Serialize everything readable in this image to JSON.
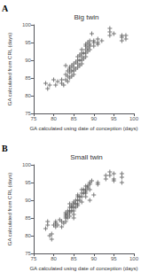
{
  "chart_data": [
    {
      "type": "scatter",
      "title": "Big twin",
      "annotation": "A",
      "xlabel": "GA calculated using date of conception (days)",
      "ylabel": "GA calculated from CRL (days)",
      "x": [
        78,
        78.5,
        79,
        80,
        80.5,
        81,
        82,
        82,
        82.5,
        83,
        83,
        83,
        83.5,
        83.5,
        83.5,
        84,
        84,
        84,
        84,
        84.5,
        84.5,
        84.5,
        85,
        85,
        85,
        85,
        85.5,
        85.5,
        86,
        86,
        86,
        86,
        86.5,
        86.5,
        86.5,
        87,
        87,
        87,
        87,
        87,
        87.5,
        87.5,
        88,
        88,
        88,
        88,
        88,
        88.5,
        88.5,
        88.5,
        89,
        89,
        89,
        89,
        89.5,
        90,
        90,
        90,
        91,
        91,
        91,
        92,
        94,
        94,
        94,
        95,
        97,
        97,
        97,
        98,
        98
      ],
      "values": [
        83.5,
        82,
        83,
        84.5,
        83,
        84,
        83.5,
        84.5,
        83,
        84.5,
        86,
        88.5,
        84,
        85.5,
        87,
        85,
        86.5,
        87.5,
        88,
        85.5,
        87,
        88.5,
        86,
        87,
        88,
        89,
        87.5,
        89.5,
        88,
        89,
        90,
        91,
        88.5,
        90,
        91.5,
        89,
        90,
        91,
        92,
        93,
        90.5,
        92,
        91,
        92,
        93,
        94,
        94.5,
        92.5,
        93.5,
        95,
        93,
        94,
        94.5,
        95.5,
        97.5,
        94,
        95,
        95.5,
        94.5,
        95,
        96,
        95.5,
        97,
        98,
        99,
        97.5,
        95.5,
        96.5,
        97,
        96,
        97
      ],
      "color": "#555555",
      "marker": "plus",
      "xlim": [
        75,
        100
      ],
      "ylim": [
        75,
        100
      ],
      "xticks": [
        75,
        80,
        85,
        90,
        95,
        100
      ],
      "yticks": [
        75,
        80,
        85,
        90,
        95,
        100
      ],
      "grid": false
    },
    {
      "type": "scatter",
      "title": "Small twin",
      "annotation": "B",
      "xlabel": "GA calculated using date of conception (days)",
      "ylabel": "GA calculated from CRL (days)",
      "x": [
        78,
        78.5,
        78.5,
        79,
        79.5,
        79.5,
        80,
        80.5,
        80.5,
        80.5,
        81,
        81.5,
        82,
        82,
        82.5,
        83,
        83,
        83,
        83,
        83,
        83.5,
        83.5,
        83.5,
        84,
        84,
        84,
        84,
        84,
        84.5,
        84.5,
        84.5,
        85,
        85,
        85,
        85,
        85,
        85,
        85.5,
        85.5,
        85.5,
        86,
        86,
        86,
        86,
        86,
        86.5,
        86.5,
        87,
        87,
        87,
        87,
        87.5,
        87.5,
        88,
        88,
        88,
        88,
        88,
        88.5,
        88.5,
        89,
        89,
        89,
        89,
        89.5,
        90,
        91,
        91,
        93,
        93,
        94,
        94,
        95,
        95,
        95,
        97,
        97,
        97
      ],
      "values": [
        82,
        83,
        84,
        80,
        79,
        80.5,
        83,
        82.5,
        83.5,
        84,
        83,
        84.5,
        82.5,
        84,
        83.5,
        84,
        85,
        85.5,
        86,
        86.5,
        85,
        86,
        87,
        85.5,
        86.5,
        87,
        88,
        89,
        87,
        88,
        88.5,
        85,
        86,
        87,
        88,
        89,
        89.5,
        88,
        89,
        90,
        88.5,
        89,
        90,
        91,
        91.5,
        90,
        91,
        89.5,
        91,
        92,
        93,
        92,
        93,
        91,
        92,
        92.5,
        93,
        94,
        93.5,
        94,
        93,
        94.5,
        95,
        90,
        95.5,
        91.5,
        94.5,
        95,
        96,
        97,
        97,
        98,
        95.5,
        96,
        97.5,
        96.5,
        97.5,
        95
      ],
      "color": "#555555",
      "marker": "plus",
      "xlim": [
        75,
        100
      ],
      "ylim": [
        75,
        100
      ],
      "xticks": [
        75,
        80,
        85,
        90,
        95,
        100
      ],
      "yticks": [
        75,
        80,
        85,
        90,
        95,
        100
      ],
      "grid": false
    }
  ]
}
